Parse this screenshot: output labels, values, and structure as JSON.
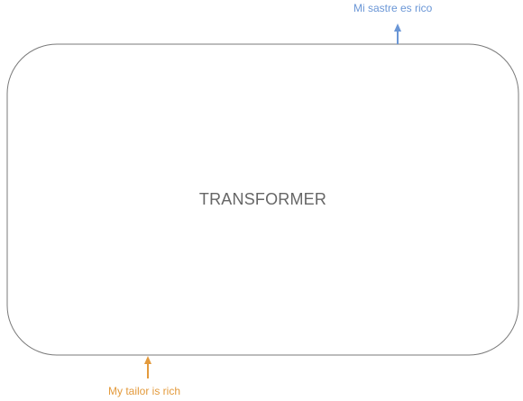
{
  "diagram": {
    "block_label": "TRANSFORMER",
    "input_text": "My tailor is rich",
    "output_text": "Mi sastre es rico"
  },
  "colors": {
    "block_border": "#7a7a7a",
    "block_text": "#666666",
    "input": "#e39a3c",
    "output": "#6a96d6"
  }
}
